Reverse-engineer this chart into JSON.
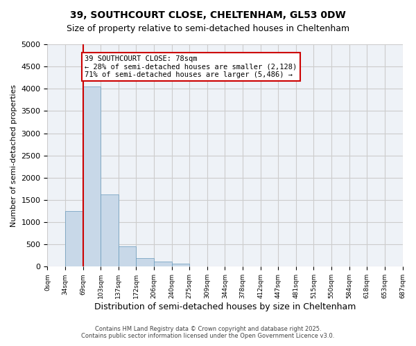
{
  "title1": "39, SOUTHCOURT CLOSE, CHELTENHAM, GL53 0DW",
  "title2": "Size of property relative to semi-detached houses in Cheltenham",
  "xlabel": "Distribution of semi-detached houses by size in Cheltenham",
  "ylabel": "Number of semi-detached properties",
  "bar_values": [
    0,
    1250,
    4050,
    1620,
    460,
    195,
    110,
    65,
    0,
    0,
    0,
    0,
    0,
    0,
    0,
    0,
    0,
    0,
    0,
    0
  ],
  "bin_labels": [
    "0sqm",
    "34sqm",
    "69sqm",
    "103sqm",
    "137sqm",
    "172sqm",
    "206sqm",
    "240sqm",
    "275sqm",
    "309sqm",
    "344sqm",
    "378sqm",
    "412sqm",
    "447sqm",
    "481sqm",
    "515sqm",
    "550sqm",
    "584sqm",
    "618sqm",
    "653sqm",
    "687sqm"
  ],
  "bar_color": "#c8d8e8",
  "bar_edge_color": "#6699bb",
  "vline_color": "#cc0000",
  "annotation_title": "39 SOUTHCOURT CLOSE: 78sqm",
  "annotation_line1": "← 28% of semi-detached houses are smaller (2,128)",
  "annotation_line2": "71% of semi-detached houses are larger (5,486) →",
  "annotation_box_color": "#ffffff",
  "annotation_box_edge": "#cc0000",
  "ylim": [
    0,
    5000
  ],
  "yticks": [
    0,
    500,
    1000,
    1500,
    2000,
    2500,
    3000,
    3500,
    4000,
    4500,
    5000
  ],
  "footer1": "Contains HM Land Registry data © Crown copyright and database right 2025.",
  "footer2": "Contains public sector information licensed under the Open Government Licence v3.0.",
  "bg_color": "#ffffff",
  "plot_bg_color": "#eef2f7",
  "grid_color": "#cccccc"
}
